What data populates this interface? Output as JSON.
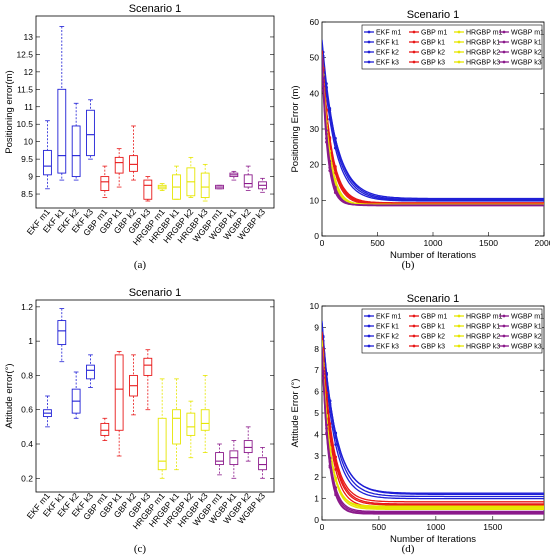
{
  "colors": {
    "EKF": "#1f1fd6",
    "GBP": "#e81818",
    "HRGBP": "#e6e600",
    "WGBP": "#8b1a8b"
  },
  "captions": [
    "(a)",
    "(b)",
    "(c)",
    "(d)"
  ],
  "chart_data": [
    {
      "type": "box",
      "title": "Scenario 1",
      "ylabel": "Positioning error(m)",
      "ylim": [
        8.1,
        13.6
      ],
      "yticks": [
        8.5,
        9,
        9.5,
        10,
        10.5,
        11,
        11.5,
        12,
        12.5,
        13
      ],
      "categories": [
        "EKF m1",
        "EKF k1",
        "EKF k2",
        "EKF k3",
        "GBP m1",
        "GBP k1",
        "GBP k2",
        "GBP k3",
        "HRGBP m1",
        "HRGBP k1",
        "HRGBP k2",
        "HRGBP k3",
        "WGBP m1",
        "WGBP k1",
        "WGBP k2",
        "WGBP k3"
      ],
      "groups": [
        "EKF",
        "EKF",
        "EKF",
        "EKF",
        "GBP",
        "GBP",
        "GBP",
        "GBP",
        "HRGBP",
        "HRGBP",
        "HRGBP",
        "HRGBP",
        "WGBP",
        "WGBP",
        "WGBP",
        "WGBP"
      ],
      "boxes": [
        {
          "min": 8.65,
          "q1": 9.05,
          "median": 9.3,
          "q3": 9.75,
          "max": 10.6
        },
        {
          "min": 8.9,
          "q1": 9.1,
          "median": 9.6,
          "q3": 11.5,
          "max": 13.3
        },
        {
          "min": 8.9,
          "q1": 9.0,
          "median": 9.6,
          "q3": 10.45,
          "max": 11.1
        },
        {
          "min": 9.5,
          "q1": 9.6,
          "median": 10.2,
          "q3": 10.9,
          "max": 11.2
        },
        {
          "min": 8.4,
          "q1": 8.6,
          "median": 8.85,
          "q3": 9.0,
          "max": 9.3
        },
        {
          "min": 8.7,
          "q1": 9.1,
          "median": 9.4,
          "q3": 9.55,
          "max": 9.8
        },
        {
          "min": 8.9,
          "q1": 9.15,
          "median": 9.35,
          "q3": 9.6,
          "max": 10.45
        },
        {
          "min": 8.3,
          "q1": 8.35,
          "median": 8.75,
          "q3": 8.9,
          "max": 9.0
        },
        {
          "min": 8.6,
          "q1": 8.65,
          "median": 8.7,
          "q3": 8.75,
          "max": 8.8
        },
        {
          "min": 8.35,
          "q1": 8.35,
          "median": 8.7,
          "q3": 9.05,
          "max": 9.3
        },
        {
          "min": 8.4,
          "q1": 8.45,
          "median": 8.85,
          "q3": 9.25,
          "max": 9.55
        },
        {
          "min": 8.3,
          "q1": 8.4,
          "median": 8.7,
          "q3": 9.1,
          "max": 9.35
        },
        {
          "min": 8.65,
          "q1": 8.65,
          "median": 8.7,
          "q3": 8.75,
          "max": 8.75
        },
        {
          "min": 8.9,
          "q1": 9.0,
          "median": 9.05,
          "q3": 9.1,
          "max": 9.15
        },
        {
          "min": 8.6,
          "q1": 8.7,
          "median": 8.8,
          "q3": 9.05,
          "max": 9.3
        },
        {
          "min": 8.55,
          "q1": 8.65,
          "median": 8.75,
          "q3": 8.85,
          "max": 8.95
        }
      ]
    },
    {
      "type": "line",
      "title": "Scenario 1",
      "xlabel": "Number of Iterations",
      "ylabel": "Positioning Error (m)",
      "xlim": [
        0,
        2000
      ],
      "ylim": [
        0,
        60
      ],
      "xticks": [
        0,
        500,
        1000,
        1500,
        2000
      ],
      "yticks": [
        0,
        10,
        20,
        30,
        40,
        50,
        60
      ],
      "legend": {
        "position": "top-right",
        "columns": 4
      },
      "series": [
        {
          "name": "EKF m1",
          "group": "EKF",
          "y0": 54,
          "yend": 10.0,
          "tau": 120
        },
        {
          "name": "EKF k1",
          "group": "EKF",
          "y0": 53,
          "yend": 10.5,
          "tau": 130
        },
        {
          "name": "EKF k2",
          "group": "EKF",
          "y0": 52,
          "yend": 9.8,
          "tau": 115
        },
        {
          "name": "EKF k3",
          "group": "EKF",
          "y0": 55,
          "yend": 10.2,
          "tau": 125
        },
        {
          "name": "GBP m1",
          "group": "GBP",
          "y0": 52,
          "yend": 9.0,
          "tau": 80
        },
        {
          "name": "GBP k1",
          "group": "GBP",
          "y0": 51,
          "yend": 9.3,
          "tau": 85
        },
        {
          "name": "GBP k2",
          "group": "GBP",
          "y0": 50,
          "yend": 8.8,
          "tau": 78
        },
        {
          "name": "GBP k3",
          "group": "GBP",
          "y0": 52,
          "yend": 9.1,
          "tau": 82
        },
        {
          "name": "HRGBP m1",
          "group": "HRGBP",
          "y0": 50,
          "yend": 8.7,
          "tau": 65
        },
        {
          "name": "HRGBP k1",
          "group": "HRGBP",
          "y0": 49,
          "yend": 8.9,
          "tau": 62
        },
        {
          "name": "HRGBP k2",
          "group": "HRGBP",
          "y0": 51,
          "yend": 8.6,
          "tau": 68
        },
        {
          "name": "HRGBP k3",
          "group": "HRGBP",
          "y0": 48,
          "yend": 8.8,
          "tau": 60
        },
        {
          "name": "WGBP m1",
          "group": "WGBP",
          "y0": 50,
          "yend": 8.6,
          "tau": 55
        },
        {
          "name": "WGBP k1",
          "group": "WGBP",
          "y0": 49,
          "yend": 8.7,
          "tau": 52
        },
        {
          "name": "WGBP k2",
          "group": "WGBP",
          "y0": 51,
          "yend": 8.5,
          "tau": 57
        },
        {
          "name": "WGBP k3",
          "group": "WGBP",
          "y0": 48,
          "yend": 8.6,
          "tau": 50
        }
      ]
    },
    {
      "type": "box",
      "title": "Scenario 1",
      "ylabel": "Attitude error(°)",
      "ylim": [
        0.12,
        1.24
      ],
      "yticks": [
        0.2,
        0.4,
        0.6,
        0.8,
        1,
        1.2
      ],
      "categories": [
        "EKF m1",
        "EKF k1",
        "EKF k2",
        "EKF k3",
        "GBP m1",
        "GBP k1",
        "GBP k2",
        "GBP k3",
        "HRGBP m1",
        "HRGBP k1",
        "HRGBP k2",
        "HRGBP k3",
        "WGBP m1",
        "WGBP k1",
        "WGBP k2",
        "WGBP k3"
      ],
      "groups": [
        "EKF",
        "EKF",
        "EKF",
        "EKF",
        "GBP",
        "GBP",
        "GBP",
        "GBP",
        "HRGBP",
        "HRGBP",
        "HRGBP",
        "HRGBP",
        "WGBP",
        "WGBP",
        "WGBP",
        "WGBP"
      ],
      "boxes": [
        {
          "min": 0.5,
          "q1": 0.56,
          "median": 0.58,
          "q3": 0.6,
          "max": 0.68
        },
        {
          "min": 0.88,
          "q1": 0.98,
          "median": 1.06,
          "q3": 1.12,
          "max": 1.19
        },
        {
          "min": 0.55,
          "q1": 0.58,
          "median": 0.65,
          "q3": 0.72,
          "max": 0.82
        },
        {
          "min": 0.73,
          "q1": 0.78,
          "median": 0.83,
          "q3": 0.86,
          "max": 0.92
        },
        {
          "min": 0.42,
          "q1": 0.45,
          "median": 0.48,
          "q3": 0.52,
          "max": 0.55
        },
        {
          "min": 0.33,
          "q1": 0.48,
          "median": 0.72,
          "q3": 0.92,
          "max": 0.94
        },
        {
          "min": 0.57,
          "q1": 0.68,
          "median": 0.74,
          "q3": 0.8,
          "max": 0.92
        },
        {
          "min": 0.6,
          "q1": 0.8,
          "median": 0.86,
          "q3": 0.9,
          "max": 0.95
        },
        {
          "min": 0.2,
          "q1": 0.25,
          "median": 0.3,
          "q3": 0.55,
          "max": 0.78
        },
        {
          "min": 0.25,
          "q1": 0.4,
          "median": 0.55,
          "q3": 0.6,
          "max": 0.78
        },
        {
          "min": 0.32,
          "q1": 0.45,
          "median": 0.5,
          "q3": 0.58,
          "max": 0.65
        },
        {
          "min": 0.35,
          "q1": 0.48,
          "median": 0.52,
          "q3": 0.6,
          "max": 0.8
        },
        {
          "min": 0.22,
          "q1": 0.28,
          "median": 0.3,
          "q3": 0.35,
          "max": 0.4
        },
        {
          "min": 0.2,
          "q1": 0.28,
          "median": 0.32,
          "q3": 0.36,
          "max": 0.42
        },
        {
          "min": 0.3,
          "q1": 0.35,
          "median": 0.38,
          "q3": 0.42,
          "max": 0.5
        },
        {
          "min": 0.2,
          "q1": 0.25,
          "median": 0.28,
          "q3": 0.32,
          "max": 0.38
        }
      ]
    },
    {
      "type": "line",
      "title": "Scenario 1",
      "xlabel": "Number of Iterations",
      "ylabel": "Attitude Error (°)",
      "xlim": [
        0,
        1950
      ],
      "ylim": [
        0,
        10
      ],
      "xticks": [
        0,
        500,
        1000,
        1500
      ],
      "yticks": [
        0,
        1,
        2,
        3,
        4,
        5,
        6,
        7,
        8,
        9,
        10
      ],
      "legend": {
        "position": "top-right",
        "columns": 4
      },
      "series": [
        {
          "name": "EKF m1",
          "group": "EKF",
          "y0": 9.3,
          "yend": 1.1,
          "tau": 110
        },
        {
          "name": "EKF k1",
          "group": "EKF",
          "y0": 9.0,
          "yend": 1.2,
          "tau": 120
        },
        {
          "name": "EKF k2",
          "group": "EKF",
          "y0": 8.9,
          "yend": 1.0,
          "tau": 105
        },
        {
          "name": "EKF k3",
          "group": "EKF",
          "y0": 9.2,
          "yend": 1.25,
          "tau": 115
        },
        {
          "name": "GBP m1",
          "group": "GBP",
          "y0": 8.6,
          "yend": 0.7,
          "tau": 85
        },
        {
          "name": "GBP k1",
          "group": "GBP",
          "y0": 8.8,
          "yend": 0.85,
          "tau": 90
        },
        {
          "name": "GBP k2",
          "group": "GBP",
          "y0": 8.5,
          "yend": 0.6,
          "tau": 80
        },
        {
          "name": "GBP k3",
          "group": "GBP",
          "y0": 8.7,
          "yend": 0.75,
          "tau": 88
        },
        {
          "name": "HRGBP m1",
          "group": "HRGBP",
          "y0": 8.2,
          "yend": 0.6,
          "tau": 70
        },
        {
          "name": "HRGBP k1",
          "group": "HRGBP",
          "y0": 8.4,
          "yend": 0.5,
          "tau": 68
        },
        {
          "name": "HRGBP k2",
          "group": "HRGBP",
          "y0": 8.0,
          "yend": 0.55,
          "tau": 72
        },
        {
          "name": "HRGBP k3",
          "group": "HRGBP",
          "y0": 8.3,
          "yend": 0.65,
          "tau": 66
        },
        {
          "name": "WGBP m1",
          "group": "WGBP",
          "y0": 8.0,
          "yend": 0.35,
          "tau": 60
        },
        {
          "name": "WGBP k1",
          "group": "WGBP",
          "y0": 7.8,
          "yend": 0.3,
          "tau": 58
        },
        {
          "name": "WGBP k2",
          "group": "WGBP",
          "y0": 8.1,
          "yend": 0.4,
          "tau": 62
        },
        {
          "name": "WGBP k3",
          "group": "WGBP",
          "y0": 7.9,
          "yend": 0.28,
          "tau": 56
        }
      ]
    }
  ]
}
